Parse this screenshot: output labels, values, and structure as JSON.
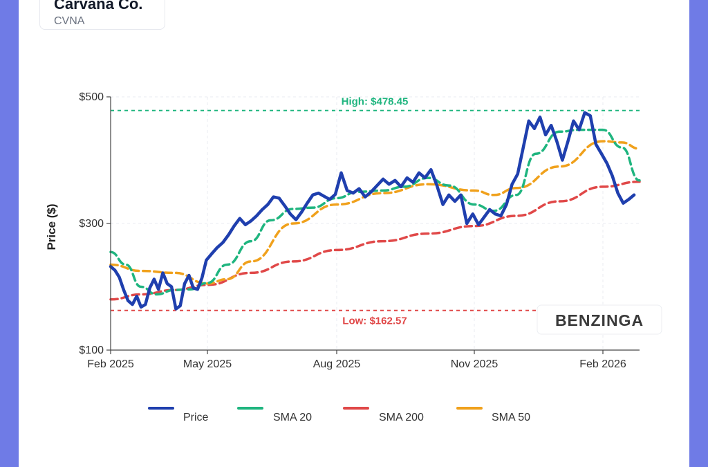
{
  "header": {
    "company_name": "Carvana Co.",
    "ticker": "CVNA"
  },
  "watermark": "BENZINGA",
  "chart_data": {
    "type": "line",
    "title": "",
    "xlabel": "",
    "ylabel": "Price ($)",
    "ylim": [
      100,
      500
    ],
    "yticks": [
      100,
      300,
      500
    ],
    "ytick_labels": [
      "$100",
      "$300",
      "$500"
    ],
    "x_range": [
      "2025-02-01",
      "2026-02-28"
    ],
    "xticks": [
      {
        "date": "2025-02-01",
        "label": "Feb 2025"
      },
      {
        "date": "2025-05-01",
        "label": "May 2025"
      },
      {
        "date": "2025-08-01",
        "label": "Aug 2025"
      },
      {
        "date": "2025-11-01",
        "label": "Nov 2025"
      },
      {
        "date": "2026-02-01",
        "label": "Feb 2026"
      }
    ],
    "grid": true,
    "legend_position": "bottom",
    "reference_lines": [
      {
        "name": "high",
        "label": "High: $478.45",
        "value": 478.45,
        "color": "#1fb57f"
      },
      {
        "name": "low",
        "label": "Low: $162.57",
        "value": 162.57,
        "color": "#e04848"
      }
    ],
    "series": [
      {
        "name": "Price",
        "color": "#1f3fae",
        "points": [
          [
            "2025-02-01",
            232
          ],
          [
            "2025-02-05",
            226
          ],
          [
            "2025-02-09",
            215
          ],
          [
            "2025-02-13",
            195
          ],
          [
            "2025-02-17",
            178
          ],
          [
            "2025-02-21",
            172
          ],
          [
            "2025-02-25",
            185
          ],
          [
            "2025-03-01",
            168
          ],
          [
            "2025-03-05",
            172
          ],
          [
            "2025-03-09",
            198
          ],
          [
            "2025-03-13",
            212
          ],
          [
            "2025-03-17",
            196
          ],
          [
            "2025-03-21",
            222
          ],
          [
            "2025-03-25",
            205
          ],
          [
            "2025-03-29",
            200
          ],
          [
            "2025-04-02",
            165
          ],
          [
            "2025-04-06",
            170
          ],
          [
            "2025-04-10",
            205
          ],
          [
            "2025-04-14",
            218
          ],
          [
            "2025-04-18",
            198
          ],
          [
            "2025-04-22",
            196
          ],
          [
            "2025-04-26",
            214
          ],
          [
            "2025-04-30",
            242
          ],
          [
            "2025-05-04",
            252
          ],
          [
            "2025-05-08",
            262
          ],
          [
            "2025-05-12",
            270
          ],
          [
            "2025-05-16",
            282
          ],
          [
            "2025-05-20",
            296
          ],
          [
            "2025-05-24",
            308
          ],
          [
            "2025-05-28",
            298
          ],
          [
            "2025-06-01",
            304
          ],
          [
            "2025-06-05",
            312
          ],
          [
            "2025-06-09",
            322
          ],
          [
            "2025-06-13",
            330
          ],
          [
            "2025-06-17",
            342
          ],
          [
            "2025-06-21",
            340
          ],
          [
            "2025-06-25",
            328
          ],
          [
            "2025-06-29",
            315
          ],
          [
            "2025-07-03",
            306
          ],
          [
            "2025-07-07",
            318
          ],
          [
            "2025-07-11",
            332
          ],
          [
            "2025-07-15",
            345
          ],
          [
            "2025-07-19",
            348
          ],
          [
            "2025-07-23",
            343
          ],
          [
            "2025-07-27",
            338
          ],
          [
            "2025-07-31",
            346
          ],
          [
            "2025-08-04",
            380
          ],
          [
            "2025-08-08",
            352
          ],
          [
            "2025-08-12",
            348
          ],
          [
            "2025-08-16",
            355
          ],
          [
            "2025-08-20",
            342
          ],
          [
            "2025-08-24",
            350
          ],
          [
            "2025-08-28",
            360
          ],
          [
            "2025-09-01",
            370
          ],
          [
            "2025-09-05",
            362
          ],
          [
            "2025-09-09",
            368
          ],
          [
            "2025-09-13",
            358
          ],
          [
            "2025-09-17",
            372
          ],
          [
            "2025-09-21",
            365
          ],
          [
            "2025-09-25",
            380
          ],
          [
            "2025-09-29",
            372
          ],
          [
            "2025-10-03",
            385
          ],
          [
            "2025-10-07",
            360
          ],
          [
            "2025-10-11",
            330
          ],
          [
            "2025-10-15",
            345
          ],
          [
            "2025-10-19",
            335
          ],
          [
            "2025-10-23",
            345
          ],
          [
            "2025-10-27",
            300
          ],
          [
            "2025-10-31",
            315
          ],
          [
            "2025-11-04",
            298
          ],
          [
            "2025-11-08",
            310
          ],
          [
            "2025-11-12",
            322
          ],
          [
            "2025-11-16",
            315
          ],
          [
            "2025-11-20",
            312
          ],
          [
            "2025-11-24",
            330
          ],
          [
            "2025-11-28",
            362
          ],
          [
            "2025-12-02",
            378
          ],
          [
            "2025-12-06",
            420
          ],
          [
            "2025-12-10",
            462
          ],
          [
            "2025-12-14",
            450
          ],
          [
            "2025-12-18",
            468
          ],
          [
            "2025-12-22",
            440
          ],
          [
            "2025-12-26",
            455
          ],
          [
            "2025-12-30",
            430
          ],
          [
            "2026-01-03",
            400
          ],
          [
            "2026-01-07",
            430
          ],
          [
            "2026-01-11",
            462
          ],
          [
            "2026-01-15",
            448
          ],
          [
            "2026-01-19",
            475
          ],
          [
            "2026-01-23",
            470
          ],
          [
            "2026-01-27",
            425
          ],
          [
            "2026-01-31",
            410
          ],
          [
            "2026-02-04",
            395
          ],
          [
            "2026-02-08",
            375
          ],
          [
            "2026-02-12",
            348
          ],
          [
            "2026-02-16",
            332
          ],
          [
            "2026-02-20",
            338
          ],
          [
            "2026-02-24",
            345
          ]
        ]
      },
      {
        "name": "SMA 20",
        "color": "#1fb57f",
        "points": [
          [
            "2025-02-01",
            255
          ],
          [
            "2025-02-15",
            235
          ],
          [
            "2025-03-01",
            200
          ],
          [
            "2025-03-15",
            188
          ],
          [
            "2025-04-01",
            195
          ],
          [
            "2025-04-15",
            196
          ],
          [
            "2025-05-01",
            206
          ],
          [
            "2025-05-15",
            235
          ],
          [
            "2025-06-01",
            272
          ],
          [
            "2025-06-15",
            305
          ],
          [
            "2025-07-01",
            323
          ],
          [
            "2025-07-15",
            325
          ],
          [
            "2025-08-01",
            340
          ],
          [
            "2025-08-15",
            350
          ],
          [
            "2025-09-01",
            352
          ],
          [
            "2025-09-15",
            358
          ],
          [
            "2025-10-01",
            372
          ],
          [
            "2025-10-15",
            360
          ],
          [
            "2025-11-01",
            330
          ],
          [
            "2025-11-15",
            320
          ],
          [
            "2025-12-01",
            345
          ],
          [
            "2025-12-15",
            410
          ],
          [
            "2026-01-01",
            445
          ],
          [
            "2026-01-15",
            448
          ],
          [
            "2026-02-01",
            448
          ],
          [
            "2026-02-15",
            420
          ],
          [
            "2026-02-28",
            368
          ]
        ]
      },
      {
        "name": "SMA 200",
        "color": "#e04848",
        "points": [
          [
            "2025-02-01",
            180
          ],
          [
            "2025-03-01",
            188
          ],
          [
            "2025-04-01",
            195
          ],
          [
            "2025-05-01",
            203
          ],
          [
            "2025-06-01",
            222
          ],
          [
            "2025-07-01",
            240
          ],
          [
            "2025-08-01",
            258
          ],
          [
            "2025-09-01",
            272
          ],
          [
            "2025-10-01",
            284
          ],
          [
            "2025-11-01",
            296
          ],
          [
            "2025-12-01",
            312
          ],
          [
            "2026-01-01",
            335
          ],
          [
            "2026-02-01",
            358
          ],
          [
            "2026-02-28",
            366
          ]
        ]
      },
      {
        "name": "SMA 50",
        "color": "#f0a11c",
        "points": [
          [
            "2025-02-01",
            235
          ],
          [
            "2025-03-01",
            225
          ],
          [
            "2025-04-01",
            222
          ],
          [
            "2025-05-01",
            205
          ],
          [
            "2025-05-15",
            212
          ],
          [
            "2025-06-01",
            240
          ],
          [
            "2025-07-01",
            300
          ],
          [
            "2025-08-01",
            330
          ],
          [
            "2025-09-01",
            348
          ],
          [
            "2025-10-01",
            362
          ],
          [
            "2025-11-01",
            352
          ],
          [
            "2025-11-15",
            345
          ],
          [
            "2025-12-01",
            356
          ],
          [
            "2026-01-01",
            390
          ],
          [
            "2026-02-01",
            430
          ],
          [
            "2026-02-15",
            428
          ],
          [
            "2026-02-28",
            418
          ]
        ]
      }
    ]
  }
}
